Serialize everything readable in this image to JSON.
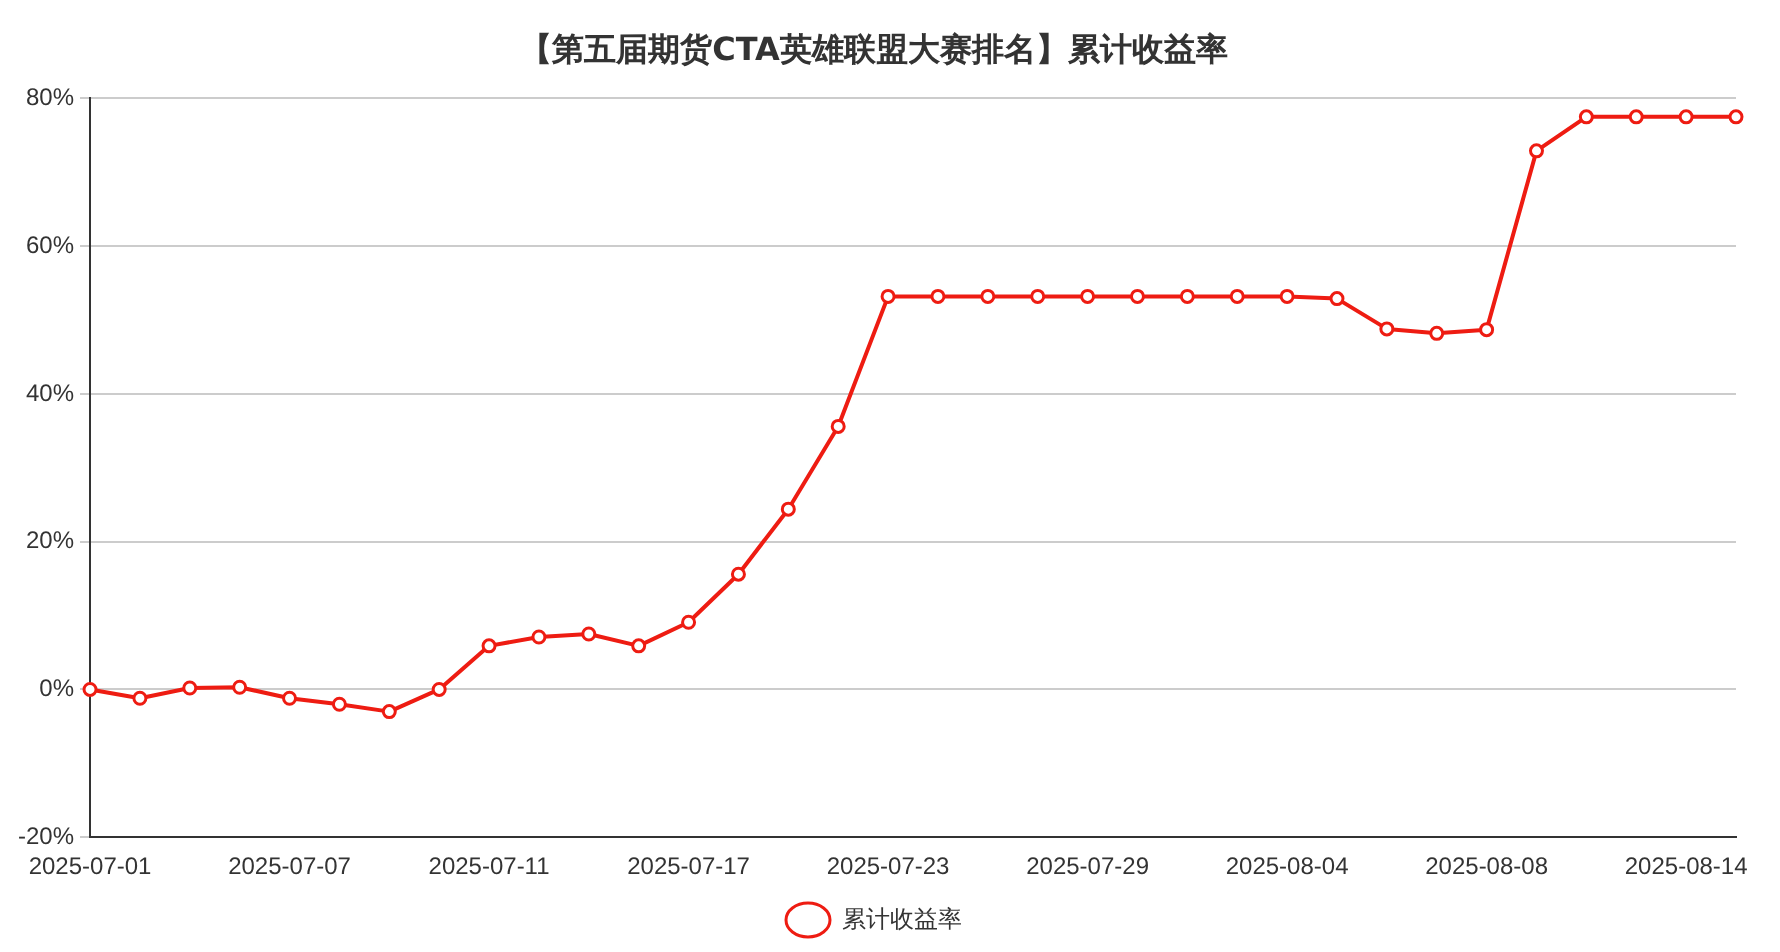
{
  "chart_data": {
    "type": "line",
    "title": "【第五届期货CTA英雄联盟大赛排名】累计收益率",
    "categories": [
      "2025-07-01",
      null,
      null,
      null,
      "2025-07-07",
      null,
      null,
      null,
      "2025-07-11",
      null,
      null,
      null,
      "2025-07-17",
      null,
      null,
      null,
      "2025-07-23",
      null,
      null,
      null,
      "2025-07-29",
      null,
      null,
      null,
      "2025-08-04",
      null,
      null,
      null,
      "2025-08-08",
      null,
      null,
      null,
      "2025-08-14",
      null
    ],
    "series": [
      {
        "name": "累计收益率",
        "color": "#ee1c12",
        "values": [
          0,
          -1.2,
          0.2,
          0.3,
          -1.2,
          -2.0,
          -3.0,
          0,
          5.9,
          7.1,
          7.5,
          5.9,
          9.1,
          15.6,
          24.4,
          35.6,
          53.2,
          53.2,
          53.2,
          53.2,
          53.2,
          53.2,
          53.2,
          53.2,
          53.2,
          52.9,
          48.8,
          48.2,
          48.7,
          72.9,
          77.5,
          77.5,
          77.5,
          77.5
        ]
      }
    ],
    "ylim": [
      -20,
      80
    ],
    "yticks": [
      {
        "value": -20,
        "label": "-20%"
      },
      {
        "value": 0,
        "label": "0%"
      },
      {
        "value": 20,
        "label": "20%"
      },
      {
        "value": 40,
        "label": "40%"
      },
      {
        "value": 60,
        "label": "60%"
      },
      {
        "value": 80,
        "label": "80%"
      }
    ],
    "grid": "y",
    "legend": "bottom",
    "marker": "circle",
    "line_style": "solid"
  }
}
